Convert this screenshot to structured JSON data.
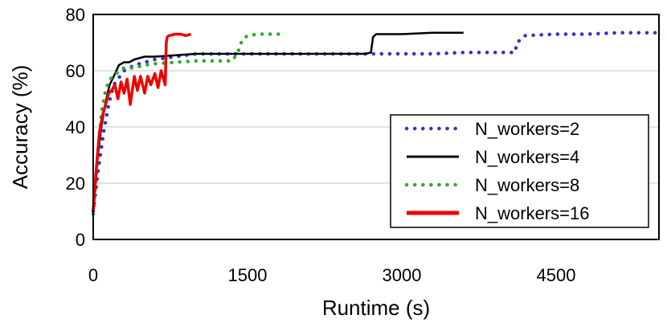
{
  "chart_data": {
    "type": "line",
    "title": "",
    "xlabel": "Runtime (s)",
    "ylabel": "Accuracy (%)",
    "xlim": [
      0,
      5500
    ],
    "ylim": [
      0,
      80
    ],
    "xticks": [
      "0",
      "1500",
      "3000",
      "4500"
    ],
    "xtick_values": [
      0,
      1500,
      3000,
      4500
    ],
    "yticks": [
      "0",
      "20",
      "40",
      "60",
      "80"
    ],
    "ytick_values": [
      0,
      20,
      40,
      60,
      80
    ],
    "grid": "horizontal",
    "legend_position": "bottom-right",
    "series": [
      {
        "name": "N_workers=2",
        "color": "#3333cc",
        "style": "dotted",
        "x": [
          0,
          50,
          100,
          150,
          200,
          300,
          400,
          600,
          800,
          1000,
          1200,
          1500,
          1800,
          2100,
          2400,
          2700,
          3000,
          3300,
          3600,
          3900,
          4100,
          4120,
          4200,
          4500,
          4800,
          5100,
          5500
        ],
        "y": [
          10,
          25,
          38,
          48,
          55,
          60,
          62,
          64,
          65,
          66,
          66,
          66,
          66,
          66,
          66,
          66,
          66,
          66,
          66.5,
          66.5,
          66.5,
          70,
          72.5,
          73,
          73,
          73.5,
          73.5
        ]
      },
      {
        "name": "N_workers=4",
        "color": "#000000",
        "style": "solid",
        "x": [
          0,
          40,
          80,
          120,
          160,
          200,
          250,
          300,
          350,
          400,
          500,
          600,
          800,
          1000,
          1200,
          1500,
          1800,
          2100,
          2400,
          2650,
          2700,
          2720,
          2750,
          3000,
          3300,
          3600
        ],
        "y": [
          10,
          28,
          40,
          49,
          55,
          58,
          62,
          63,
          63,
          64,
          65,
          65,
          65.5,
          66,
          66,
          66,
          66,
          66,
          66,
          66,
          66.5,
          72,
          73,
          73,
          73.5,
          73.5
        ]
      },
      {
        "name": "N_workers=8",
        "color": "#33aa33",
        "style": "dotted",
        "x": [
          0,
          40,
          80,
          120,
          160,
          200,
          250,
          300,
          400,
          500,
          600,
          800,
          1000,
          1200,
          1350,
          1400,
          1450,
          1500,
          1600,
          1800
        ],
        "y": [
          9,
          28,
          45,
          53,
          57,
          58,
          60,
          61,
          61,
          62,
          62.5,
          63,
          63.5,
          63.5,
          63.5,
          66,
          71,
          72.5,
          73,
          73
        ]
      },
      {
        "name": "N_workers=16",
        "color": "#ee0000",
        "style": "solid",
        "x": [
          0,
          30,
          60,
          90,
          120,
          150,
          180,
          210,
          240,
          270,
          300,
          330,
          360,
          400,
          430,
          460,
          500,
          530,
          560,
          600,
          630,
          660,
          700,
          710,
          720,
          740,
          800,
          850,
          900,
          950
        ],
        "y": [
          10,
          25,
          38,
          44,
          48,
          52,
          53,
          55,
          50,
          56,
          52,
          57,
          48,
          58,
          53,
          58,
          52,
          58,
          55,
          59,
          54,
          60,
          55,
          70,
          72,
          72.5,
          73,
          73,
          72.5,
          73
        ]
      }
    ]
  }
}
